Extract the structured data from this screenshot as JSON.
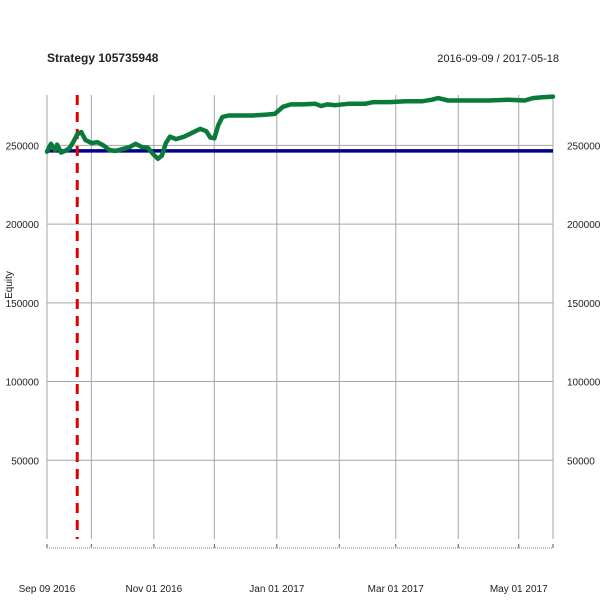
{
  "chart_data": {
    "type": "line",
    "title": "Strategy 105735948",
    "date_range": "2016-09-09 / 2017-05-18",
    "ylabel": "Equity",
    "xlim": [
      "2016-09-09",
      "2017-05-18"
    ],
    "ylim": [
      0,
      282000
    ],
    "y_ticks": [
      50000,
      100000,
      150000,
      200000,
      250000
    ],
    "y_tick_labels": [
      "50000",
      "100000",
      "150000",
      "200000",
      "250000"
    ],
    "x_tick_dates": [
      "2016-09-09",
      "2016-11-01",
      "2017-01-01",
      "2017-03-01",
      "2017-05-01"
    ],
    "x_tick_labels": [
      "Sep 09 2016",
      "Nov 01 2016",
      "Jan 01 2017",
      "Mar 01 2017",
      "May 01 2017"
    ],
    "grid": true,
    "series": [
      {
        "color": "#0a7a3a",
        "points": [
          [
            "2016-09-09",
            246000
          ],
          [
            "2016-09-11",
            251000
          ],
          [
            "2016-09-13",
            247000
          ],
          [
            "2016-09-14",
            250500
          ],
          [
            "2016-09-16",
            245500
          ],
          [
            "2016-09-18",
            246500
          ],
          [
            "2016-09-20",
            248000
          ],
          [
            "2016-09-22",
            252000
          ],
          [
            "2016-09-24",
            257000
          ],
          [
            "2016-09-26",
            258500
          ],
          [
            "2016-09-28",
            253500
          ],
          [
            "2016-10-01",
            251500
          ],
          [
            "2016-10-04",
            252000
          ],
          [
            "2016-10-07",
            250000
          ],
          [
            "2016-10-10",
            247000
          ],
          [
            "2016-10-13",
            246500
          ],
          [
            "2016-10-16",
            247500
          ],
          [
            "2016-10-20",
            249000
          ],
          [
            "2016-10-23",
            251000
          ],
          [
            "2016-10-26",
            249000
          ],
          [
            "2016-10-29",
            248500
          ],
          [
            "2016-11-01",
            244000
          ],
          [
            "2016-11-03",
            241500
          ],
          [
            "2016-11-05",
            243500
          ],
          [
            "2016-11-07",
            251500
          ],
          [
            "2016-11-09",
            255500
          ],
          [
            "2016-11-12",
            254000
          ],
          [
            "2016-11-16",
            255500
          ],
          [
            "2016-11-20",
            258000
          ],
          [
            "2016-11-24",
            260500
          ],
          [
            "2016-11-27",
            259000
          ],
          [
            "2016-11-29",
            255000
          ],
          [
            "2016-12-01",
            254500
          ],
          [
            "2016-12-03",
            263000
          ],
          [
            "2016-12-05",
            268000
          ],
          [
            "2016-12-08",
            269000
          ],
          [
            "2016-12-14",
            269000
          ],
          [
            "2016-12-20",
            269000
          ],
          [
            "2016-12-26",
            269500
          ],
          [
            "2016-12-31",
            270000
          ],
          [
            "2017-01-04",
            274500
          ],
          [
            "2017-01-08",
            276000
          ],
          [
            "2017-01-14",
            276000
          ],
          [
            "2017-01-20",
            276500
          ],
          [
            "2017-01-23",
            275000
          ],
          [
            "2017-01-26",
            276000
          ],
          [
            "2017-01-30",
            275500
          ],
          [
            "2017-02-06",
            276500
          ],
          [
            "2017-02-14",
            276500
          ],
          [
            "2017-02-18",
            277500
          ],
          [
            "2017-02-26",
            277500
          ],
          [
            "2017-03-06",
            278000
          ],
          [
            "2017-03-14",
            278000
          ],
          [
            "2017-03-19",
            279000
          ],
          [
            "2017-03-22",
            280000
          ],
          [
            "2017-03-27",
            278500
          ],
          [
            "2017-04-06",
            278500
          ],
          [
            "2017-04-16",
            278500
          ],
          [
            "2017-04-26",
            279000
          ],
          [
            "2017-05-04",
            278500
          ],
          [
            "2017-05-08",
            280000
          ],
          [
            "2017-05-12",
            280500
          ],
          [
            "2017-05-18",
            281000
          ]
        ]
      }
    ],
    "hlines": [
      {
        "y": 246500,
        "color": "#00008b"
      }
    ],
    "vlines": [
      {
        "x": "2016-09-24",
        "color": "#e00000",
        "style": "dashed"
      }
    ]
  }
}
